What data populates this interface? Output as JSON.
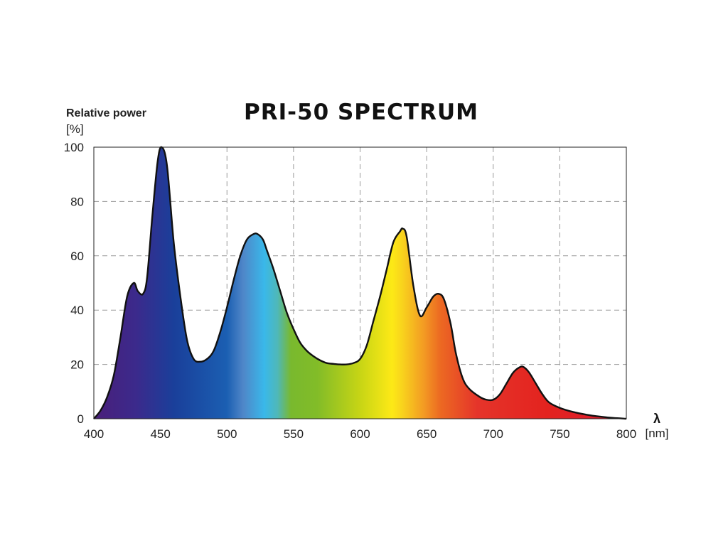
{
  "chart_data": {
    "type": "area",
    "title": "PRI-50 SPECTRUM",
    "ylabel": "Relative power",
    "ylabel_unit": "[%]",
    "xlabel": "λ",
    "xlabel_unit": "[nm]",
    "xlim": [
      400,
      800
    ],
    "ylim": [
      0,
      100
    ],
    "x_ticks": [
      "400",
      "450",
      "500",
      "550",
      "600",
      "650",
      "700",
      "750",
      "800"
    ],
    "y_ticks": [
      "0",
      "20",
      "40",
      "60",
      "80",
      "100"
    ],
    "grid": true,
    "series": [
      {
        "x": [
          400,
          405,
          410,
          415,
          420,
          425,
          430,
          433,
          437,
          440,
          444,
          448,
          451,
          455,
          460,
          465,
          470,
          475,
          480,
          485,
          490,
          495,
          500,
          505,
          510,
          515,
          520,
          523,
          527,
          530,
          535,
          540,
          545,
          550,
          555,
          560,
          565,
          570,
          575,
          580,
          585,
          590,
          595,
          600,
          605,
          610,
          615,
          620,
          625,
          630,
          632,
          635,
          640,
          645,
          650,
          655,
          659,
          663,
          668,
          672,
          677,
          682,
          690,
          695,
          700,
          705,
          710,
          715,
          720,
          723,
          727,
          732,
          737,
          742,
          750,
          760,
          770,
          780,
          790,
          800
        ],
        "y": [
          0,
          3,
          8,
          16,
          30,
          45,
          50,
          47,
          46,
          52,
          75,
          95,
          100,
          93,
          65,
          45,
          29,
          22,
          21,
          22,
          25,
          32,
          41,
          51,
          60,
          66,
          68,
          68,
          66,
          62,
          55,
          47,
          39,
          33,
          28,
          25,
          23,
          21.5,
          20.5,
          20.2,
          20,
          20,
          20.5,
          22,
          27,
          36,
          45,
          55,
          65,
          69,
          70,
          67,
          49,
          38,
          41,
          45,
          46,
          44,
          35,
          24,
          15,
          11,
          8,
          7,
          7,
          9,
          13,
          17,
          19,
          19,
          17,
          13,
          9,
          6,
          4,
          2.5,
          1.5,
          0.8,
          0.3,
          0
        ]
      }
    ],
    "spectrum_colors": [
      {
        "offset": 0.0,
        "color": "#4a1f7a"
      },
      {
        "offset": 0.08,
        "color": "#3b2a8c"
      },
      {
        "offset": 0.15,
        "color": "#1a3f9a"
      },
      {
        "offset": 0.25,
        "color": "#1b5fb2"
      },
      {
        "offset": 0.28,
        "color": "#4f86c8"
      },
      {
        "offset": 0.32,
        "color": "#39b8ea"
      },
      {
        "offset": 0.345,
        "color": "#4fb8b8"
      },
      {
        "offset": 0.37,
        "color": "#79b92e"
      },
      {
        "offset": 0.42,
        "color": "#82bc28"
      },
      {
        "offset": 0.5,
        "color": "#c7d515"
      },
      {
        "offset": 0.56,
        "color": "#fde916"
      },
      {
        "offset": 0.58,
        "color": "#f8d21d"
      },
      {
        "offset": 0.62,
        "color": "#f39a23"
      },
      {
        "offset": 0.65,
        "color": "#ec6a22"
      },
      {
        "offset": 0.72,
        "color": "#e5342a"
      },
      {
        "offset": 0.85,
        "color": "#e3231f"
      },
      {
        "offset": 0.94,
        "color": "#df1e2a"
      },
      {
        "offset": 1.0,
        "color": "#d62130"
      }
    ]
  }
}
